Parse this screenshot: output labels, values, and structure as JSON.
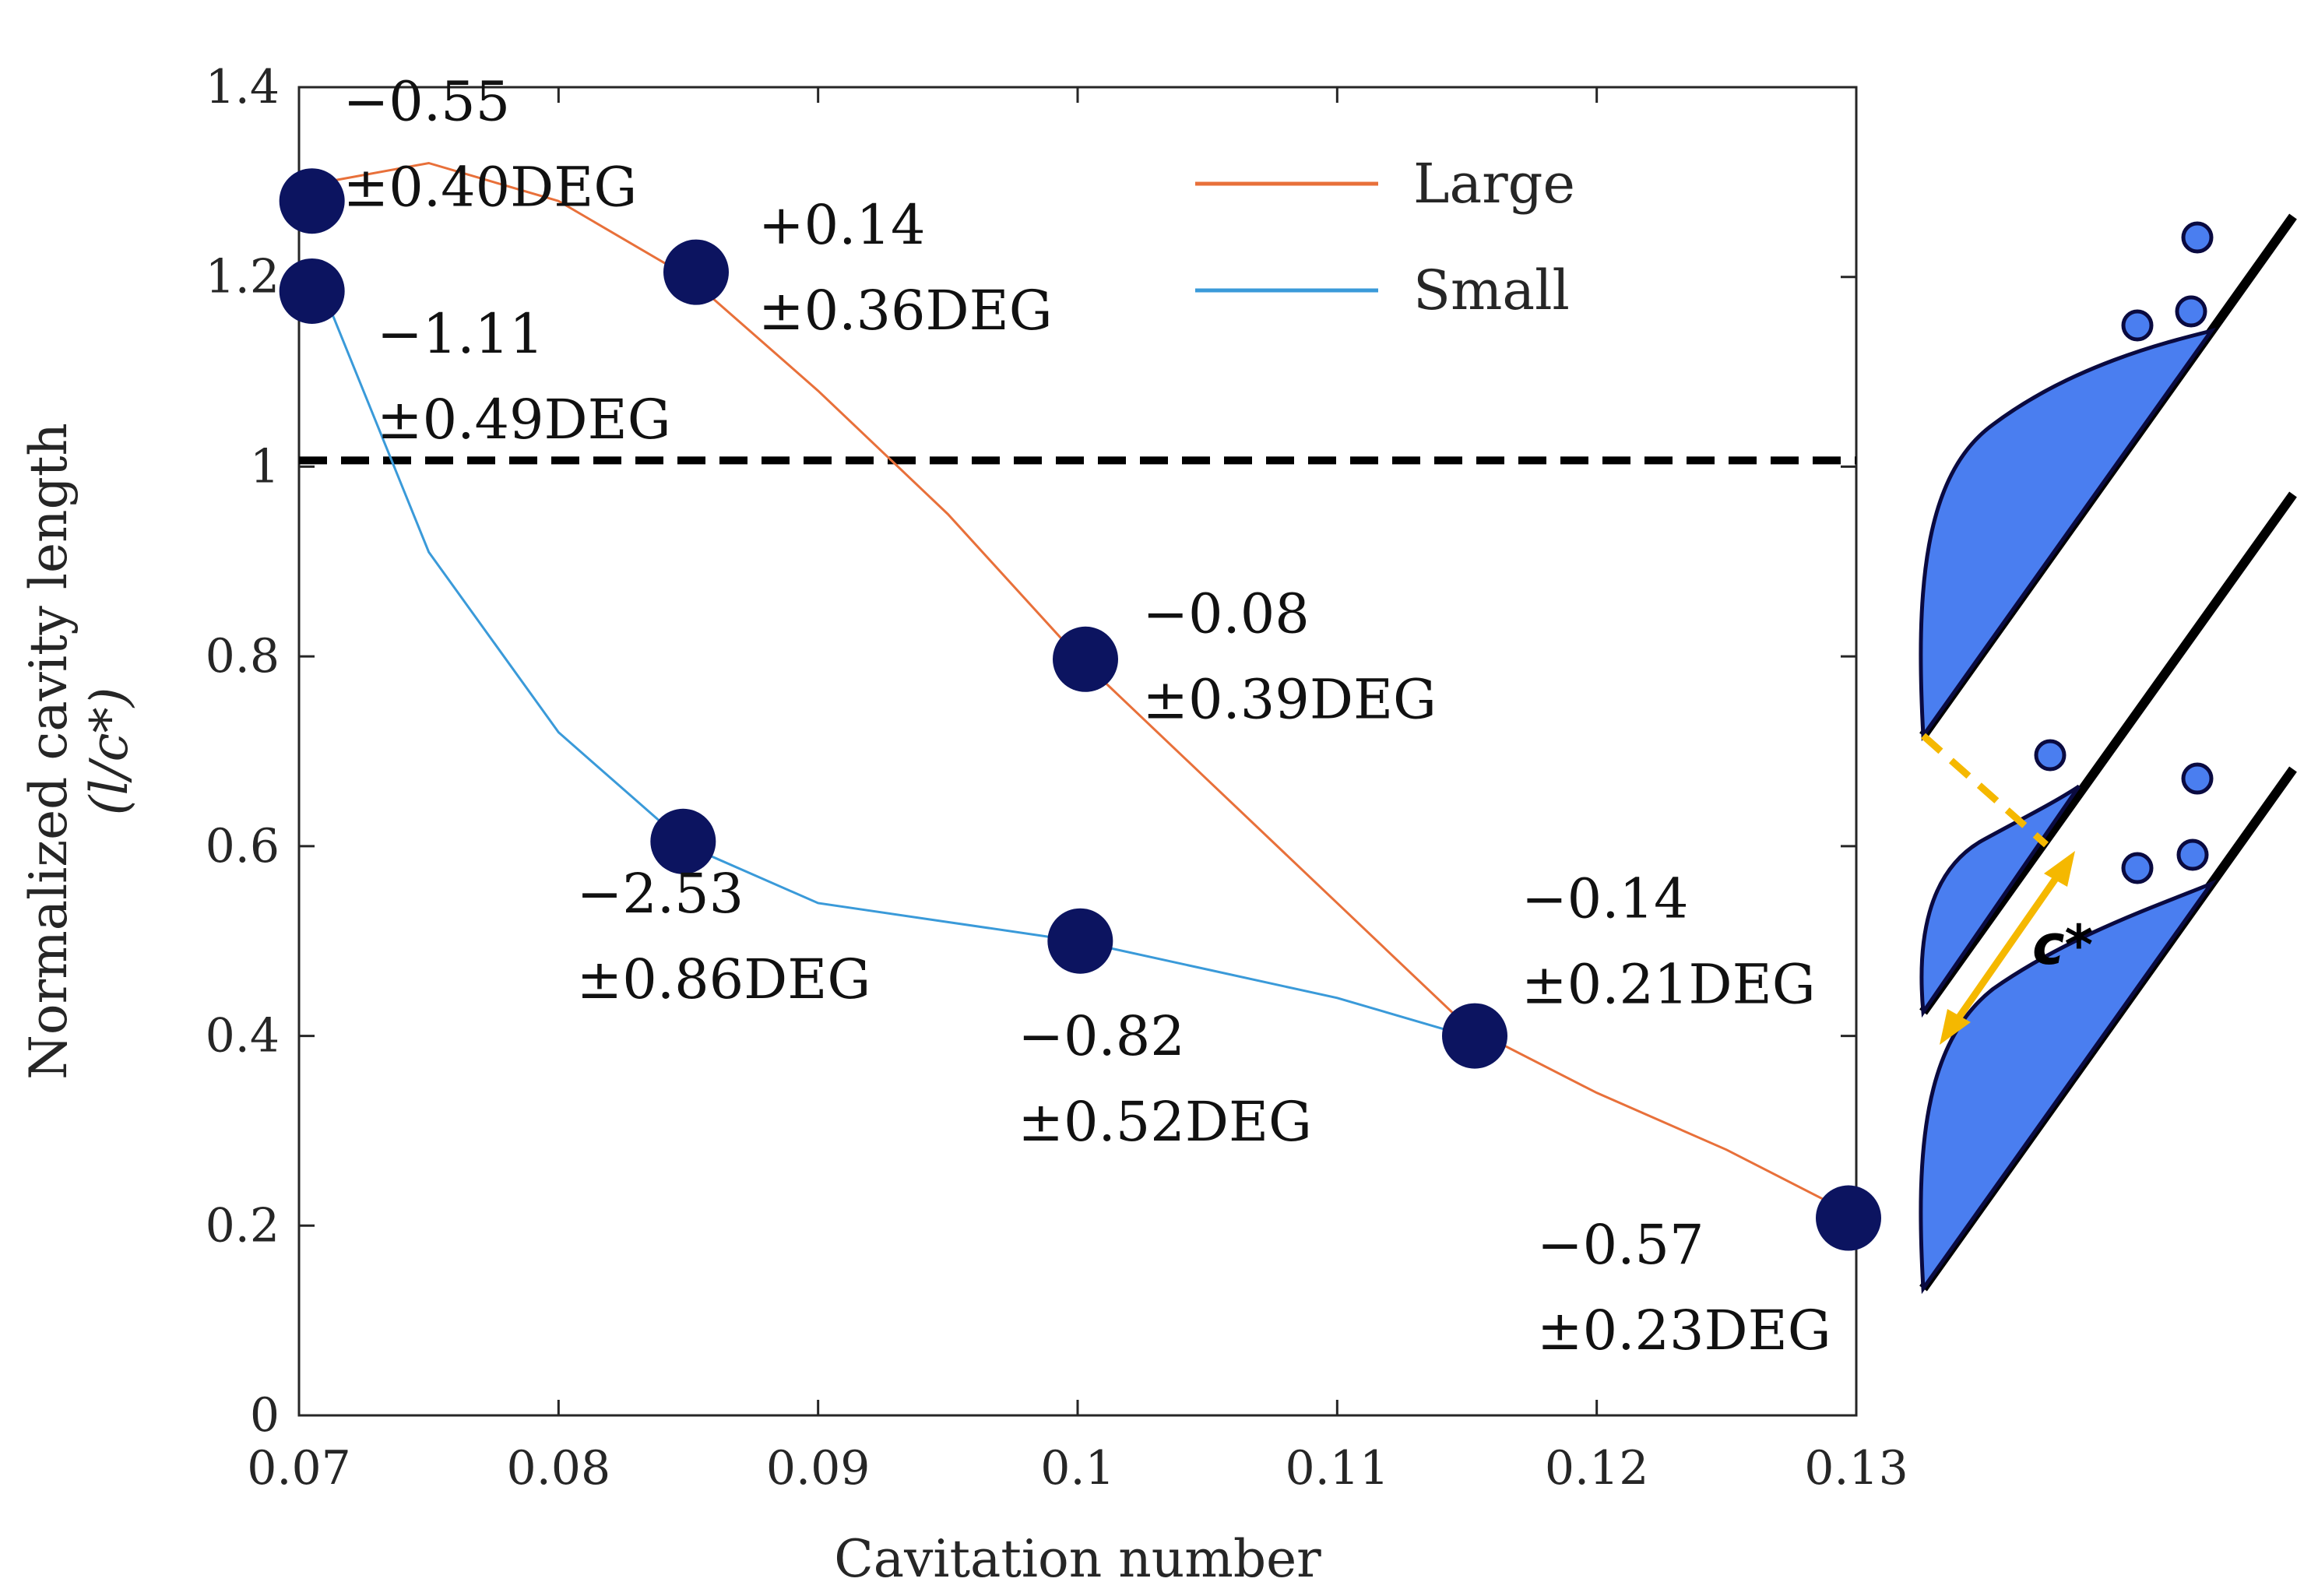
{
  "chart_data": {
    "type": "line",
    "title": "",
    "xlabel": "Cavitation number",
    "ylabel_line1": "Normalized cavity length",
    "ylabel_line2": "(l/c*)",
    "xlim": [
      0.07,
      0.13
    ],
    "ylim": [
      0,
      1.4
    ],
    "xticks": [
      0.07,
      0.08,
      0.09,
      0.1,
      0.11,
      0.12,
      0.13
    ],
    "xtick_labels": [
      "0.07",
      "0.08",
      "0.09",
      "0.1",
      "0.11",
      "0.12",
      "0.13"
    ],
    "yticks": [
      0,
      0.2,
      0.4,
      0.6,
      0.8,
      1,
      1.2,
      1.4
    ],
    "ytick_labels": [
      "0",
      "0.2",
      "0.4",
      "0.6",
      "0.8",
      "1",
      "1.2",
      "1.4"
    ],
    "reference_line": {
      "y": 1.0,
      "style": "dashed",
      "color": "#000000"
    },
    "grid": false,
    "legend_position": "top-right",
    "series": [
      {
        "name": "Large",
        "color": "#e8703a",
        "x": [
          0.071,
          0.075,
          0.08,
          0.085,
          0.09,
          0.095,
          0.1,
          0.105,
          0.11,
          0.115,
          0.12,
          0.125,
          0.13
        ],
        "y": [
          1.3,
          1.32,
          1.28,
          1.2,
          1.08,
          0.95,
          0.8,
          0.67,
          0.54,
          0.41,
          0.34,
          0.28,
          0.21
        ]
      },
      {
        "name": "Small",
        "color": "#3a9ad9",
        "x": [
          0.071,
          0.075,
          0.08,
          0.085,
          0.09,
          0.095,
          0.1,
          0.105,
          0.11,
          0.115
        ],
        "y": [
          1.18,
          0.91,
          0.72,
          0.6,
          0.54,
          0.52,
          0.5,
          0.47,
          0.44,
          0.4
        ]
      }
    ],
    "markers": {
      "color": "#0c1460",
      "points": [
        {
          "x": 0.0705,
          "y": 1.28
        },
        {
          "x": 0.0705,
          "y": 1.185
        },
        {
          "x": 0.0853,
          "y": 1.205
        },
        {
          "x": 0.1003,
          "y": 0.797
        },
        {
          "x": 0.0848,
          "y": 0.605
        },
        {
          "x": 0.1001,
          "y": 0.5
        },
        {
          "x": 0.1153,
          "y": 0.4
        },
        {
          "x": 0.1297,
          "y": 0.208
        }
      ]
    },
    "annotations": [
      {
        "line1": "−0.55",
        "line2": "±0.40DEG",
        "x": 0.0717,
        "y": 1.365
      },
      {
        "line1": "+0.14",
        "line2": "±0.36DEG",
        "x": 0.0877,
        "y": 1.235
      },
      {
        "line1": "−1.11",
        "line2": "±0.49DEG",
        "x": 0.073,
        "y": 1.12
      },
      {
        "line1": "−0.08",
        "line2": "±0.39DEG",
        "x": 0.1025,
        "y": 0.825
      },
      {
        "line1": "−2.53",
        "line2": "±0.86DEG",
        "x": 0.0807,
        "y": 0.53
      },
      {
        "line1": "−0.82",
        "line2": "±0.52DEG",
        "x": 0.0977,
        "y": 0.38
      },
      {
        "line1": "−0.14",
        "line2": "±0.21DEG",
        "x": 0.1171,
        "y": 0.525
      },
      {
        "line1": "−0.57",
        "line2": "±0.23DEG",
        "x": 0.1177,
        "y": 0.16
      }
    ]
  },
  "diagram": {
    "label": "c*",
    "cavity_color": "#4a7ef0",
    "arrow_color": "#f5b800",
    "outline_color": "#0a0a40"
  }
}
